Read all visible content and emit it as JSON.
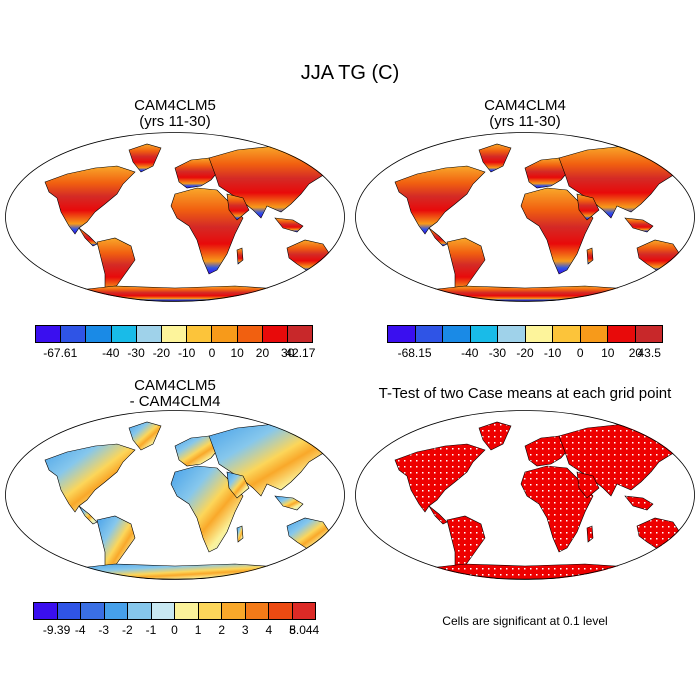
{
  "title": "JJA TG (C)",
  "panels": [
    {
      "id": "cam4clm5",
      "title_line1": "CAM4CLM5",
      "title_line2": "(yrs 11-30)",
      "type": "absolute"
    },
    {
      "id": "cam4clm4",
      "title_line1": "CAM4CLM4",
      "title_line2": "(yrs 11-30)",
      "type": "absolute"
    },
    {
      "id": "diff",
      "title_line1": "CAM4CLM5",
      "title_line2": "- CAM4CLM4",
      "type": "difference"
    },
    {
      "id": "ttest",
      "title_line1": "T-Test of two Case means at each grid point",
      "title_line2": "",
      "type": "ttest"
    }
  ],
  "colorbars": {
    "clm5": {
      "colors": [
        "#3a0fef",
        "#2f54e6",
        "#1a8ae6",
        "#19bbe8",
        "#9fd2ea",
        "#fdf49b",
        "#fcc43a",
        "#f79a1a",
        "#f16010",
        "#e80a0a",
        "#c8282a"
      ],
      "labels": [
        "-67.61",
        "-40",
        "-30",
        "-20",
        "-10",
        "0",
        "10",
        "20",
        "30",
        "42.17"
      ]
    },
    "clm4": {
      "colors": [
        "#3a0fef",
        "#2f54e6",
        "#1a8ae6",
        "#19bbe8",
        "#9fd2ea",
        "#fdf49b",
        "#fcc43a",
        "#f79a1a",
        "#e80a0a",
        "#c8282a"
      ],
      "labels": [
        "-68.15",
        "-40",
        "-30",
        "-20",
        "-10",
        "0",
        "10",
        "20",
        "43.5"
      ]
    },
    "diff": {
      "colors": [
        "#3a0fef",
        "#2f54e6",
        "#3a6fe4",
        "#46a0ea",
        "#86c7ec",
        "#c8e8f2",
        "#fbf29a",
        "#fcd65a",
        "#f9a82a",
        "#f37a18",
        "#ec4a12",
        "#dc2a26"
      ],
      "labels": [
        "-9.39",
        "-4",
        "-3",
        "-2",
        "-1",
        "0",
        "1",
        "2",
        "3",
        "4",
        "5",
        "8.044"
      ]
    }
  },
  "significance_note": "Cells are significant at 0.1 level"
}
